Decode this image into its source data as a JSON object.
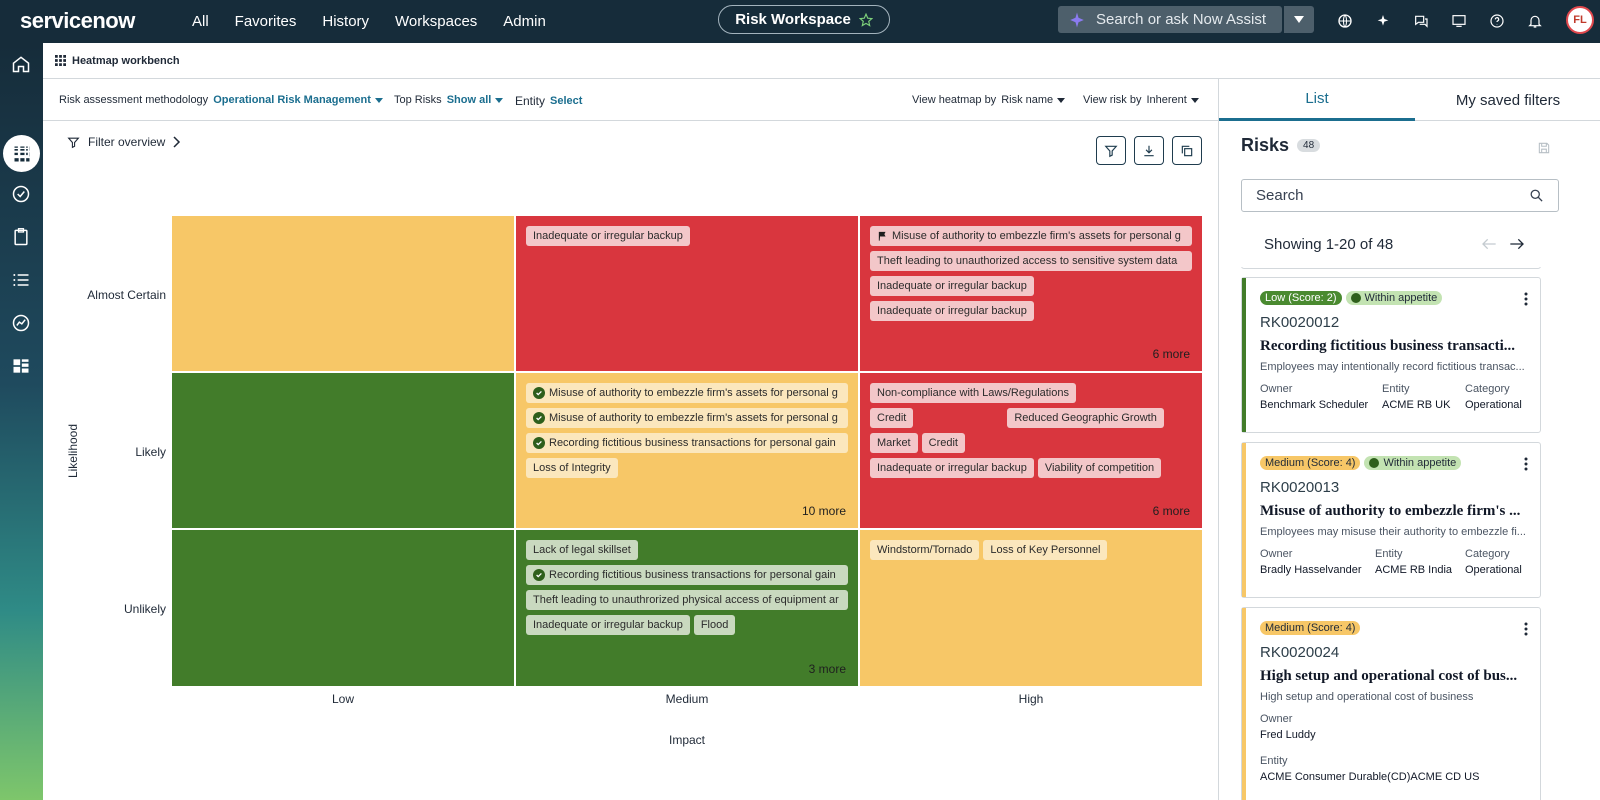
{
  "topbar": {
    "logo": "servicenow",
    "nav": [
      "All",
      "Favorites",
      "History",
      "Workspaces",
      "Admin"
    ],
    "workspace_title": "Risk Workspace",
    "assist_placeholder": "Search or ask Now Assist",
    "avatar_initials": "FL"
  },
  "workbench": {
    "title": "Heatmap workbench"
  },
  "filters": {
    "methodology_label": "Risk assessment methodology",
    "methodology_value": "Operational Risk Management",
    "top_risks_label": "Top Risks",
    "top_risks_value": "Show all",
    "entity_label": "Entity",
    "entity_value": "Select",
    "view_heatmap_label": "View heatmap by",
    "view_heatmap_value": "Risk name",
    "view_risk_label": "View risk by",
    "view_risk_value": "Inherent",
    "filter_overview": "Filter overview"
  },
  "heatmap": {
    "x_axis_title": "Impact",
    "y_axis_title": "Likelihood",
    "x_labels": [
      "Low",
      "Medium",
      "High"
    ],
    "y_labels": [
      "Almost Certain",
      "Likely",
      "Unlikely"
    ],
    "cells": {
      "ac_medium": {
        "chips": [
          "Inadequate or irregular backup"
        ],
        "more": ""
      },
      "ac_high": {
        "chips": [
          "Misuse of authority to embezzle firm's assets for personal g",
          "Theft leading to unauthorized access to sensitive system data",
          "Inadequate or irregular backup",
          "Inadequate or irregular backup"
        ],
        "more": "6 more"
      },
      "likely_medium": {
        "chips": [
          "Misuse of authority to embezzle firm's assets for personal g",
          "Misuse of authority to embezzle firm's assets for personal g",
          "Recording fictitious business transactions for personal gain",
          "Loss of Integrity"
        ],
        "more": "10 more"
      },
      "likely_high": {
        "chips": [
          "Non-compliance with Laws/Regulations",
          "Credit",
          "Reduced Geographic Growth",
          "Market",
          "Credit",
          "Inadequate or irregular backup",
          "Viability of competition"
        ],
        "more": "6 more"
      },
      "unlikely_medium": {
        "chips": [
          "Lack of legal skillset",
          "Recording fictitious business transactions for personal gain",
          "Theft leading to unauthrorized physical access of equipment ar",
          "Inadequate or irregular backup",
          "Flood"
        ],
        "more": "3 more"
      },
      "unlikely_high": {
        "chips": [
          "Windstorm/Tornado",
          "Loss of Key Personnel"
        ],
        "more": ""
      }
    }
  },
  "panel": {
    "tabs": [
      "List",
      "My saved filters"
    ],
    "title": "Risks",
    "count": "48",
    "search_placeholder": "Search",
    "showing": "Showing 1-20 of 48",
    "cards": [
      {
        "score": "Low (Score: 2)",
        "appetite": "Within appetite",
        "id": "RK0020012",
        "name": "Recording fictitious business transacti...",
        "desc": "Employees may intentionally record fictitious transac...",
        "owner_label": "Owner",
        "owner": "Benchmark Scheduler",
        "entity_label": "Entity",
        "entity": "ACME RB UK",
        "category_label": "Category",
        "category": "Operational"
      },
      {
        "score": "Medium (Score: 4)",
        "appetite": "Within appetite",
        "id": "RK0020013",
        "name": "Misuse of authority to embezzle firm's ...",
        "desc": "Employees may misuse their authority to embezzle fi...",
        "owner_label": "Owner",
        "owner": "Bradly Hasselvander",
        "entity_label": "Entity",
        "entity": "ACME RB India",
        "category_label": "Category",
        "category": "Operational"
      },
      {
        "score": "Medium (Score: 4)",
        "id": "RK0020024",
        "name": "High setup and operational cost of bus...",
        "desc": "High setup and operational cost of business",
        "owner_label": "Owner",
        "owner": "Fred Luddy",
        "entity_label": "Entity",
        "entity": "ACME Consumer Durable(CD)ACME CD US"
      }
    ]
  },
  "colors": {
    "topbar": "#162c3a",
    "high": "#d9363e",
    "medium": "#f7c767",
    "low": "#427c2a",
    "accent": "#1b6e8f"
  }
}
